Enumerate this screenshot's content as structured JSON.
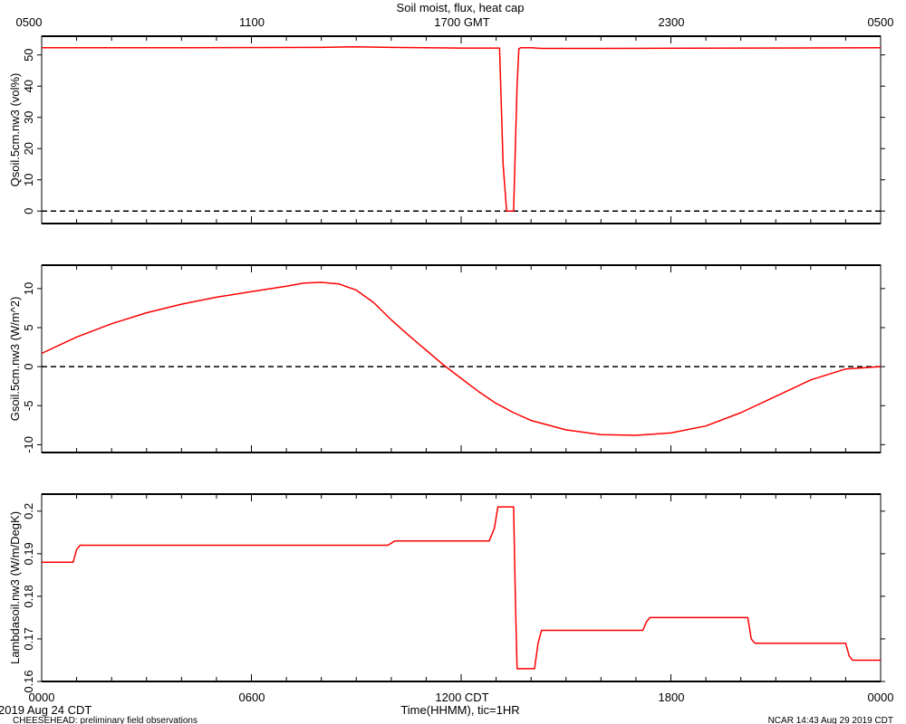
{
  "title": "Soil moist, flux, heat cap",
  "top_axis": {
    "tick_labels": [
      "0500",
      "1100",
      "1700 GMT",
      "2300",
      "0500"
    ]
  },
  "bottom_axis": {
    "tick_labels": [
      "0000",
      "0600",
      "1200 CDT",
      "1800",
      "0000"
    ],
    "label": "Time(HHMM), tic=1HR"
  },
  "footer": {
    "date": "2019 Aug 24 CDT",
    "project": "CHEESEHEAD: preliminary field observations",
    "credit": "NCAR 14:43 Aug 29 2019 CDT"
  },
  "colors": {
    "series": "#ff0000",
    "frame": "#000000",
    "zero_line": "#000000"
  },
  "chart_data": [
    {
      "type": "line",
      "ylabel": "Qsoil.5cm.nw3 (vol%)",
      "ylim": [
        -4,
        56
      ],
      "yticks": [
        0,
        10,
        20,
        30,
        40,
        50
      ],
      "zero_line": true,
      "xlim": [
        0,
        24
      ],
      "x": [
        0,
        4,
        8,
        9,
        10,
        12,
        13,
        13.1,
        13.2,
        13.3,
        13.5,
        13.6,
        13.65,
        13.7,
        14,
        14.3,
        16,
        20,
        24
      ],
      "values": [
        52.3,
        52.3,
        52.4,
        52.6,
        52.4,
        52.2,
        52.2,
        52.2,
        15,
        0,
        0,
        40,
        52,
        52.3,
        52.3,
        52.1,
        52.1,
        52.2,
        52.3
      ]
    },
    {
      "type": "line",
      "ylabel": "Gsoil.5cm.nw3 (W/m^2)",
      "ylim": [
        -11,
        13
      ],
      "yticks": [
        -10,
        -5,
        0,
        5,
        10
      ],
      "zero_line": true,
      "xlim": [
        0,
        24
      ],
      "x": [
        0,
        1,
        2,
        3,
        4,
        5,
        6,
        7,
        7.5,
        8,
        8.5,
        9,
        9.5,
        10,
        10.5,
        11,
        11.5,
        12,
        12.5,
        13,
        13.5,
        14,
        15,
        16,
        17,
        18,
        19,
        20,
        21,
        22,
        23,
        24
      ],
      "values": [
        1.7,
        3.8,
        5.5,
        6.9,
        8.0,
        8.9,
        9.6,
        10.3,
        10.7,
        10.8,
        10.6,
        9.8,
        8.2,
        6.0,
        4.0,
        2.1,
        0.2,
        -1.5,
        -3.2,
        -4.7,
        -5.9,
        -6.9,
        -8.1,
        -8.7,
        -8.8,
        -8.5,
        -7.6,
        -5.9,
        -3.8,
        -1.7,
        -0.3,
        0.0
      ]
    },
    {
      "type": "line",
      "ylabel": "Lambdasoil.nw3 (W/m/DegK)",
      "ylim": [
        0.16,
        0.204
      ],
      "yticks": [
        0.16,
        0.17,
        0.18,
        0.19,
        0.2
      ],
      "zero_line": false,
      "xlim": [
        0,
        24
      ],
      "x": [
        0,
        0.9,
        1.0,
        1.1,
        9.9,
        10.1,
        12.8,
        12.95,
        13.05,
        13.5,
        13.55,
        13.6,
        14.1,
        14.2,
        14.3,
        17.2,
        17.3,
        17.4,
        20.2,
        20.3,
        20.4,
        23.0,
        23.1,
        23.2,
        24
      ],
      "values": [
        0.188,
        0.188,
        0.191,
        0.192,
        0.192,
        0.193,
        0.193,
        0.196,
        0.201,
        0.201,
        0.18,
        0.163,
        0.163,
        0.169,
        0.172,
        0.172,
        0.174,
        0.175,
        0.175,
        0.17,
        0.169,
        0.169,
        0.166,
        0.165,
        0.165
      ]
    }
  ]
}
